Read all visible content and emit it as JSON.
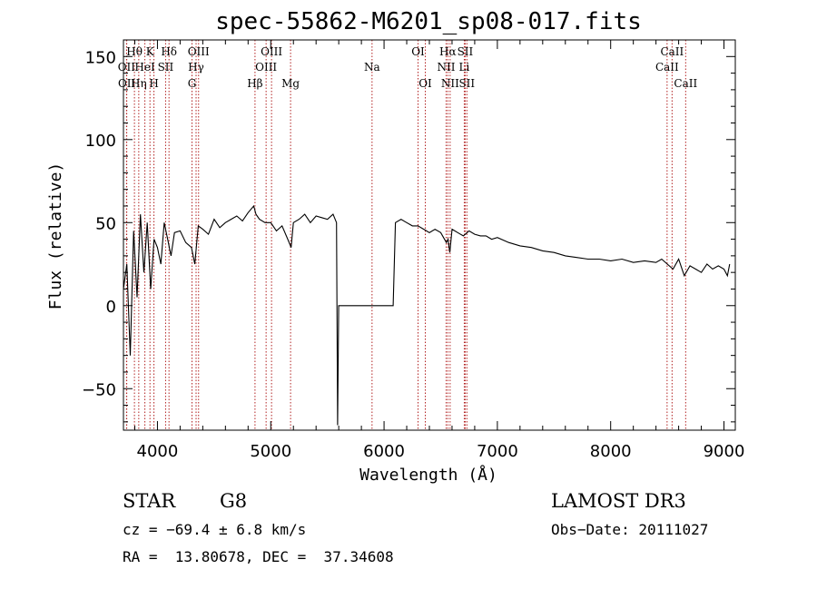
{
  "chart_data": {
    "type": "line",
    "title": "spec-55862-M6201_sp08-017.fits",
    "xlabel": "Wavelength (Å)",
    "ylabel": "Flux (relative)",
    "xlim": [
      3700,
      9100
    ],
    "ylim": [
      -75,
      160
    ],
    "x_ticks": [
      4000,
      5000,
      6000,
      7000,
      8000,
      9000
    ],
    "x_tick_labels": [
      "4000",
      "5000",
      "6000",
      "7000",
      "8000",
      "9000"
    ],
    "y_ticks": [
      -50,
      0,
      50,
      100,
      150
    ],
    "y_tick_labels": [
      "−50",
      "0",
      "50",
      "100",
      "150"
    ],
    "line_color": "#000000",
    "marker_color": "#b22222",
    "series": [
      {
        "name": "flux",
        "x": [
          3700,
          3730,
          3760,
          3790,
          3820,
          3850,
          3880,
          3910,
          3940,
          3970,
          4000,
          4030,
          4060,
          4090,
          4120,
          4150,
          4200,
          4250,
          4300,
          4330,
          4360,
          4400,
          4450,
          4500,
          4550,
          4600,
          4650,
          4700,
          4750,
          4800,
          4850,
          4870,
          4900,
          4950,
          5000,
          5050,
          5100,
          5150,
          5180,
          5200,
          5250,
          5300,
          5350,
          5400,
          5450,
          5500,
          5550,
          5580,
          5590,
          5600,
          5620,
          5650,
          6050,
          6080,
          6100,
          6150,
          6200,
          6250,
          6300,
          6350,
          6400,
          6450,
          6500,
          6550,
          6565,
          6580,
          6600,
          6650,
          6700,
          6750,
          6800,
          6850,
          6900,
          6950,
          7000,
          7100,
          7200,
          7300,
          7400,
          7500,
          7600,
          7700,
          7800,
          7900,
          8000,
          8100,
          8200,
          8300,
          8400,
          8450,
          8500,
          8550,
          8600,
          8650,
          8700,
          8750,
          8800,
          8850,
          8900,
          8950,
          9000,
          9030,
          9050
        ],
        "y": [
          10,
          25,
          -30,
          45,
          5,
          55,
          20,
          50,
          10,
          40,
          35,
          25,
          50,
          40,
          30,
          44,
          45,
          38,
          35,
          25,
          48,
          46,
          43,
          52,
          47,
          50,
          52,
          54,
          51,
          56,
          60,
          55,
          52,
          50,
          50,
          45,
          48,
          40,
          35,
          50,
          52,
          55,
          50,
          54,
          53,
          52,
          55,
          50,
          -72,
          0,
          0,
          0,
          0,
          0,
          50,
          52,
          50,
          48,
          48,
          46,
          44,
          46,
          44,
          38,
          40,
          32,
          46,
          44,
          42,
          45,
          43,
          42,
          42,
          40,
          41,
          38,
          36,
          35,
          33,
          32,
          30,
          29,
          28,
          28,
          27,
          28,
          26,
          27,
          26,
          28,
          25,
          22,
          28,
          18,
          24,
          22,
          20,
          25,
          22,
          24,
          22,
          18,
          25
        ]
      }
    ],
    "lines": [
      {
        "name": "OII",
        "wave": 3727,
        "row": 2
      },
      {
        "name": "OII",
        "wave": 3729,
        "row": 3
      },
      {
        "name": "Hθ",
        "wave": 3797,
        "row": 1
      },
      {
        "name": "Hη",
        "wave": 3835,
        "row": 3
      },
      {
        "name": "HeI",
        "wave": 3889,
        "row": 2
      },
      {
        "name": "K",
        "wave": 3934,
        "row": 1
      },
      {
        "name": "H",
        "wave": 3969,
        "row": 3
      },
      {
        "name": "SII",
        "wave": 4072,
        "row": 2
      },
      {
        "name": "Hδ",
        "wave": 4102,
        "row": 1
      },
      {
        "name": "G",
        "wave": 4305,
        "row": 3
      },
      {
        "name": "Hγ",
        "wave": 4341,
        "row": 2
      },
      {
        "name": "OIII",
        "wave": 4363,
        "row": 1
      },
      {
        "name": "Hβ",
        "wave": 4861,
        "row": 3
      },
      {
        "name": "OIII",
        "wave": 4959,
        "row": 2
      },
      {
        "name": "OIII",
        "wave": 5007,
        "row": 1
      },
      {
        "name": "Mg",
        "wave": 5175,
        "row": 3
      },
      {
        "name": "Na",
        "wave": 5894,
        "row": 2
      },
      {
        "name": "OI",
        "wave": 6300,
        "row": 1
      },
      {
        "name": "OI",
        "wave": 6364,
        "row": 3
      },
      {
        "name": "NII",
        "wave": 6548,
        "row": 2
      },
      {
        "name": "Hα",
        "wave": 6563,
        "row": 1
      },
      {
        "name": "NII",
        "wave": 6583,
        "row": 3
      },
      {
        "name": "Li",
        "wave": 6708,
        "row": 2
      },
      {
        "name": "SII",
        "wave": 6716,
        "row": 1
      },
      {
        "name": "SII",
        "wave": 6731,
        "row": 3
      },
      {
        "name": "CaII",
        "wave": 8498,
        "row": 2
      },
      {
        "name": "CaII",
        "wave": 8542,
        "row": 1
      },
      {
        "name": "CaII",
        "wave": 8662,
        "row": 3
      }
    ]
  },
  "info": {
    "class_label": "STAR",
    "subclass": "G8",
    "survey": "LAMOST DR3",
    "cz": "cz = −69.4 ± 6.8 km/s",
    "obs_date": "Obs−Date: 20111027",
    "coords": "RA =  13.80678, DEC =  37.34608"
  }
}
